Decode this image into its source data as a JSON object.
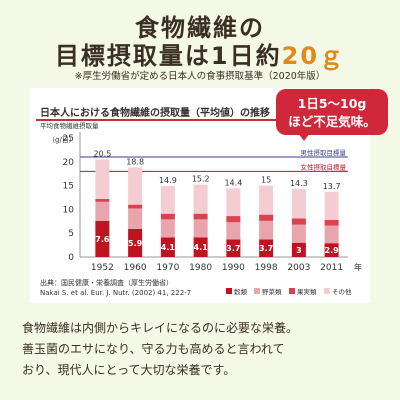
{
  "page": {
    "title_line1": "食物繊維の",
    "title_line2_prefix": "目標摂取量は1日約",
    "title_line2_accent": "20ｇ",
    "subtitle": "※厚生労働省が定める日本人の食事摂取基準（2020年版）",
    "card_title": "日本人における食物繊維の摂取量（平均値）の推移",
    "bubble_line1": "1日5～10g",
    "bubble_line2": "ほど不足気味。",
    "source_line1": "出典：国民健康・栄養調査（厚生労働省）",
    "source_line2": "Nakai S. et al. Eur. J. Nutr. (2002) 41, 222-7",
    "body_part1": "食物繊維は内側からキレイになるのに必要な栄養。",
    "body_part2": "善玉菌のエサになり、守る力も高めると言われて",
    "body_part3": "おり、現代人にとって大切な栄養です。"
  },
  "chart_data": {
    "type": "bar",
    "stacked": true,
    "title": "日本人における食物繊維の摂取量（平均値）の推移",
    "ylabel_top": "平均食物繊維摂取量",
    "yunit": "（g/日）",
    "xunit": "年",
    "ylim": [
      0,
      25
    ],
    "yticks": [
      0,
      5,
      10,
      15,
      20,
      25
    ],
    "categories": [
      "1952",
      "1960",
      "1970",
      "1980",
      "1990",
      "1998",
      "2003",
      "2011"
    ],
    "totals": [
      20.5,
      18.8,
      14.9,
      15.2,
      14.4,
      15.0,
      14.3,
      13.7
    ],
    "series": [
      {
        "name": "穀類",
        "color": "#c0121f",
        "values": [
          7.6,
          5.9,
          4.1,
          4.1,
          3.7,
          3.7,
          3.0,
          2.9
        ]
      },
      {
        "name": "野菜類",
        "color": "#e9a5ad",
        "values": [
          4.0,
          4.3,
          3.8,
          3.8,
          3.6,
          3.9,
          3.8,
          3.7
        ]
      },
      {
        "name": "果実類",
        "color": "#d8434f",
        "values": [
          0.6,
          0.8,
          1.2,
          1.2,
          1.3,
          1.3,
          1.3,
          1.2
        ]
      },
      {
        "name": "その他",
        "color": "#f3cdd1",
        "values": [
          8.3,
          7.8,
          5.8,
          6.1,
          5.8,
          6.1,
          6.2,
          5.9
        ]
      }
    ],
    "reference_lines": [
      {
        "label": "男性摂取目標量",
        "value": 21,
        "color": "#3b3f8f"
      },
      {
        "label": "女性摂取目標量",
        "value": 18,
        "color": "#c0121f"
      }
    ],
    "legend_position": "bottom-right",
    "grid": false
  }
}
